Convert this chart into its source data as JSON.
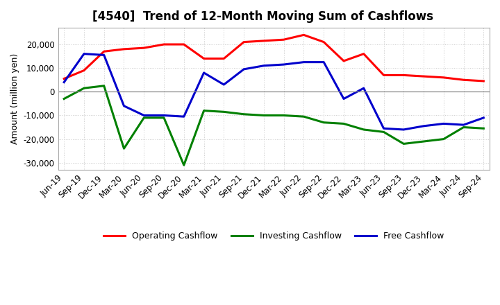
{
  "title": "[4540]  Trend of 12-Month Moving Sum of Cashflows",
  "ylabel": "Amount (million yen)",
  "ylim": [
    -33000,
    27000
  ],
  "yticks": [
    -30000,
    -20000,
    -10000,
    0,
    10000,
    20000
  ],
  "background_color": "#ffffff",
  "plot_bg_color": "#ffffff",
  "grid_color": "#cccccc",
  "dates": [
    "Jun-19",
    "Sep-19",
    "Dec-19",
    "Mar-20",
    "Jun-20",
    "Sep-20",
    "Dec-20",
    "Mar-21",
    "Jun-21",
    "Sep-21",
    "Dec-21",
    "Mar-22",
    "Jun-22",
    "Sep-22",
    "Dec-22",
    "Mar-23",
    "Jun-23",
    "Sep-23",
    "Dec-23",
    "Mar-24",
    "Jun-24",
    "Sep-24"
  ],
  "operating": [
    5500,
    9000,
    17000,
    18000,
    18500,
    20000,
    20000,
    14000,
    14000,
    21000,
    21500,
    22000,
    24000,
    21000,
    13000,
    16000,
    7000,
    7000,
    6500,
    6000,
    5000,
    4500
  ],
  "investing": [
    -3000,
    1500,
    2500,
    -24000,
    -11000,
    -11000,
    -31000,
    -8000,
    -8500,
    -9500,
    -10000,
    -10000,
    -10500,
    -13000,
    -13500,
    -16000,
    -17000,
    -22000,
    -21000,
    -20000,
    -15000,
    -15500
  ],
  "free": [
    4000,
    16000,
    15500,
    -6000,
    -10000,
    -10000,
    -10500,
    8000,
    3000,
    9500,
    11000,
    11500,
    12500,
    12500,
    -3000,
    1500,
    -15500,
    -16000,
    -14500,
    -13500,
    -14000,
    -11000
  ],
  "line_colors": {
    "operating": "#ff0000",
    "investing": "#008000",
    "free": "#0000cc"
  },
  "line_width": 2.2
}
